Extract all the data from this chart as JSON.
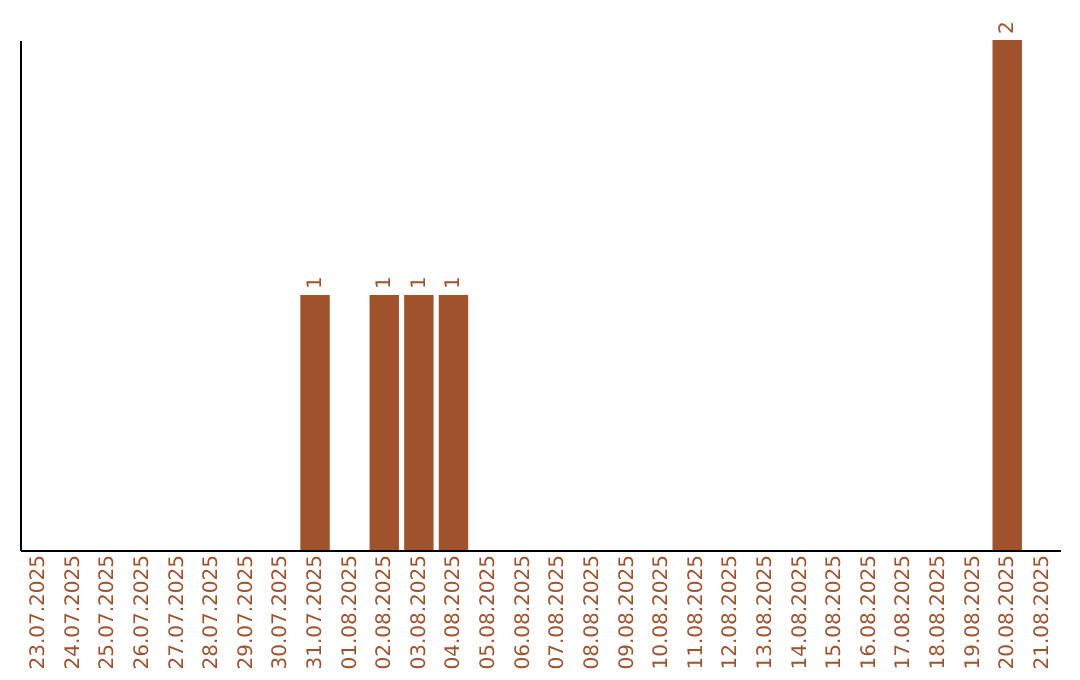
{
  "chart_data": {
    "type": "bar",
    "categories": [
      "23.07.2025",
      "24.07.2025",
      "25.07.2025",
      "26.07.2025",
      "27.07.2025",
      "28.07.2025",
      "29.07.2025",
      "30.07.2025",
      "31.07.2025",
      "01.08.2025",
      "02.08.2025",
      "03.08.2025",
      "04.08.2025",
      "05.08.2025",
      "06.08.2025",
      "07.08.2025",
      "08.08.2025",
      "09.08.2025",
      "10.08.2025",
      "11.08.2025",
      "12.08.2025",
      "13.08.2025",
      "14.08.2025",
      "15.08.2025",
      "16.08.2025",
      "17.08.2025",
      "18.08.2025",
      "19.08.2025",
      "20.08.2025",
      "21.08.2025"
    ],
    "values": [
      0,
      0,
      0,
      0,
      0,
      0,
      0,
      0,
      1,
      0,
      1,
      1,
      1,
      0,
      0,
      0,
      0,
      0,
      0,
      0,
      0,
      0,
      0,
      0,
      0,
      0,
      0,
      0,
      2,
      0
    ],
    "value_labels": [
      null,
      null,
      null,
      null,
      null,
      null,
      null,
      null,
      "1",
      null,
      "1",
      "1",
      "1",
      null,
      null,
      null,
      null,
      null,
      null,
      null,
      null,
      null,
      null,
      null,
      null,
      null,
      null,
      null,
      "2",
      null
    ],
    "color": "#a0522d",
    "grid": false,
    "tick_labels": "x"
  }
}
